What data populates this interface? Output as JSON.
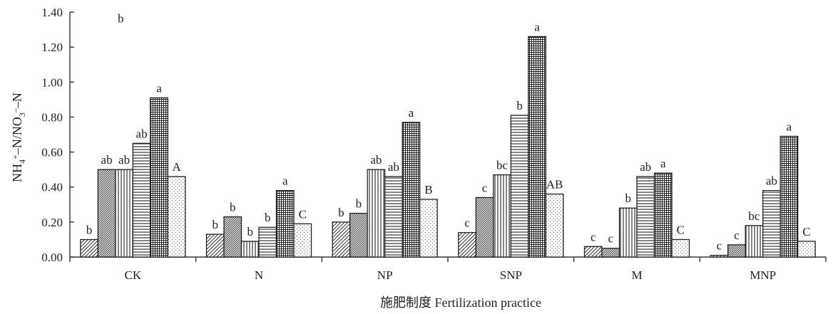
{
  "chart_data": {
    "type": "bar",
    "xlabel": "施肥制度 Fertilization practice",
    "ylabel": "NH₄⁺–N/NO₃⁻–N",
    "ylim": [
      0,
      1.4
    ],
    "yticks": [
      "0.00",
      "0.20",
      "0.40",
      "0.60",
      "0.80",
      "1.00",
      "1.20",
      "1.40"
    ],
    "categories": [
      "CK",
      "N",
      "NP",
      "SNP",
      "M",
      "MNP"
    ],
    "series": [
      {
        "pattern": "diagonal",
        "values": [
          0.1,
          0.13,
          0.2,
          0.14,
          0.06,
          0.01
        ],
        "labels": [
          "b",
          "b",
          "b",
          "c",
          "c",
          "c"
        ]
      },
      {
        "pattern": "diagonal-dense",
        "values": [
          0.5,
          0.23,
          0.25,
          0.34,
          0.05,
          0.07
        ],
        "labels": [
          "ab",
          "b",
          "b",
          "c",
          "c",
          "c"
        ]
      },
      {
        "pattern": "vertical",
        "values": [
          0.5,
          0.09,
          0.5,
          0.47,
          0.28,
          0.18
        ],
        "labels": [
          "ab",
          "b",
          "ab",
          "bc",
          "b",
          "bc"
        ]
      },
      {
        "pattern": "horizontal",
        "values": [
          0.65,
          0.17,
          0.46,
          0.81,
          0.46,
          0.38
        ],
        "labels": [
          "ab",
          "b",
          "ab",
          "b",
          "ab",
          "ab"
        ]
      },
      {
        "pattern": "grid",
        "values": [
          0.91,
          0.38,
          0.77,
          1.26,
          0.48,
          0.69
        ],
        "labels": [
          "a",
          "a",
          "a",
          "a",
          "a",
          "a"
        ]
      },
      {
        "pattern": "dots",
        "values": [
          0.46,
          0.19,
          0.33,
          0.36,
          0.1,
          0.09
        ],
        "labels": [
          "A",
          "C",
          "B",
          "AB",
          "C",
          "C"
        ]
      }
    ],
    "annotations": [
      {
        "text": "b",
        "x": "CK",
        "y": 1.37
      }
    ],
    "grid": false,
    "legend": "none"
  }
}
